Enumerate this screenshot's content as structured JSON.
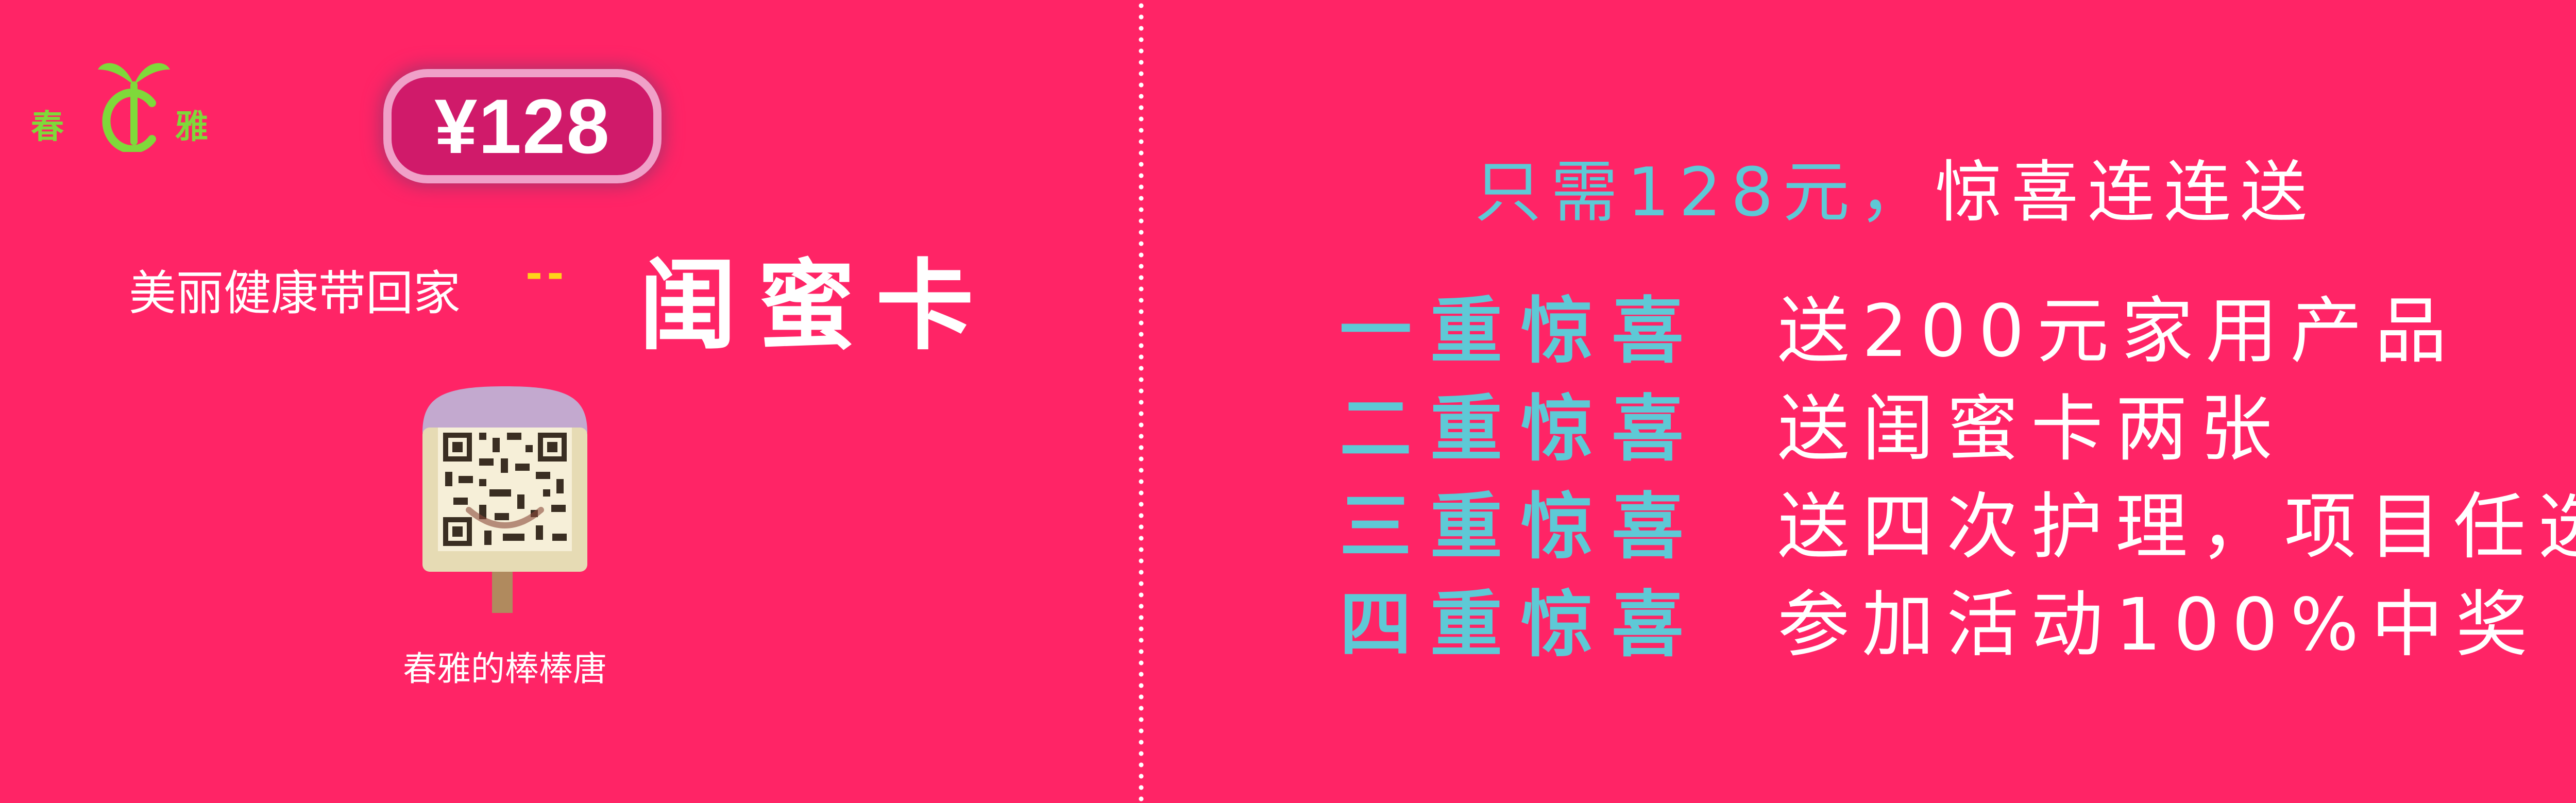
{
  "brand": {
    "char_left": "春",
    "char_right": "雅",
    "logo_color": "#7fd93a"
  },
  "price": "¥128",
  "tagline": "美丽健康带回家",
  "separator": "--",
  "card_name": "闺蜜卡",
  "qr_caption": "春雅的棒棒唐",
  "headline": {
    "part1": "只需128元，",
    "part2": "惊喜连连送"
  },
  "offers": [
    {
      "level": "一重惊喜",
      "gift": "送200元家用产品"
    },
    {
      "level": "二重惊喜",
      "gift": "送闺蜜卡两张"
    },
    {
      "level": "三重惊喜",
      "gift": "送四次护理，项目任选"
    },
    {
      "level": "四重惊喜",
      "gift": "参加活动100%中奖"
    }
  ],
  "colors": {
    "background": "#ff2466",
    "accent_blue": "#5ec9d6",
    "separator_yellow": "#ffd31a",
    "text": "#ffffff"
  }
}
